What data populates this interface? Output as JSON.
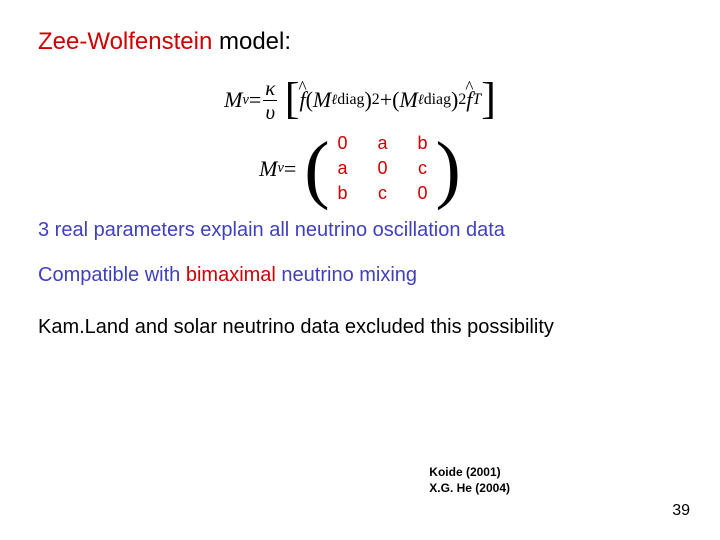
{
  "colors": {
    "red": "#cc0000",
    "purple": "#4040bf",
    "black": "#000000",
    "bg": "#ffffff"
  },
  "title": {
    "part1": "Zee-Wolfenstein",
    "part2": " model:"
  },
  "eq1": {
    "lhs_M": "M",
    "lhs_sub": "ν",
    "equals": " = ",
    "frac_num": "κ",
    "frac_den": "υ",
    "f1": "f",
    "open": "(",
    "Ml_M": "M",
    "Ml_sub": "ℓ",
    "diag": "diag",
    "close": ")",
    "sq": "2",
    "plus": " + ",
    "f2": "f",
    "T": "T"
  },
  "matrix": {
    "lhs_M": "M",
    "lhs_sub": "ν",
    "equals": " = ",
    "cells": [
      "0",
      "a",
      "b",
      "a",
      "0",
      "c",
      "b",
      "c",
      "0"
    ]
  },
  "line_params": "3 real parameters explain all neutrino oscillation data",
  "line_compat_pre": "Compatible with ",
  "line_compat_em": "bimaximal",
  "line_compat_post": " neutrino mixing",
  "line_excluded": "Kam.Land and solar neutrino data excluded this possibility",
  "refs": {
    "r1": "Koide (2001)",
    "r2": "X.G. He (2004)"
  },
  "page": "39",
  "typography": {
    "title_fontsize": 24,
    "body_fontsize": 20,
    "eq_fontsize": 22,
    "matrix_fontsize": 18,
    "refs_fontsize": 12,
    "page_fontsize": 16
  }
}
